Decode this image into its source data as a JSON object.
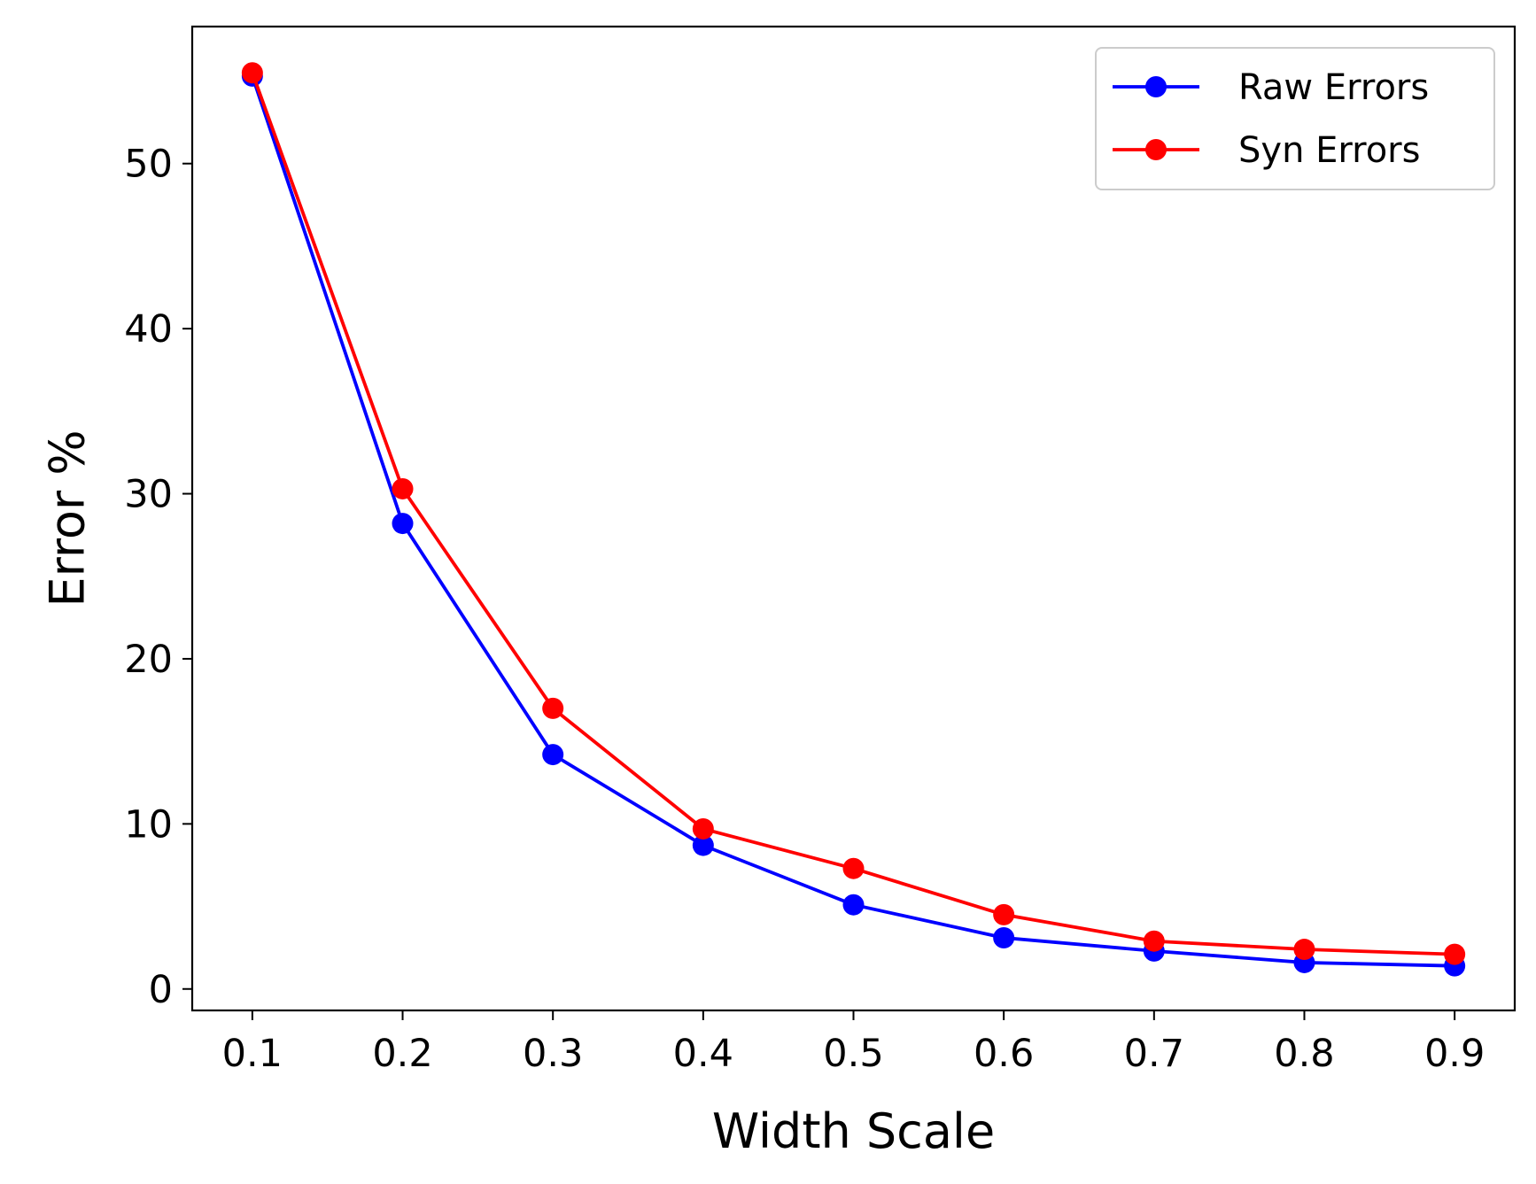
{
  "chart_data": {
    "type": "line",
    "title": "",
    "xlabel": "Width Scale",
    "ylabel": "Error %",
    "x": [
      0.1,
      0.2,
      0.3,
      0.4,
      0.5,
      0.6,
      0.7,
      0.8,
      0.9
    ],
    "x_tick_labels": [
      "0.1",
      "0.2",
      "0.3",
      "0.4",
      "0.5",
      "0.6",
      "0.7",
      "0.8",
      "0.9"
    ],
    "y_ticks": [
      0,
      10,
      20,
      30,
      40,
      50
    ],
    "y_tick_labels": [
      "0",
      "10",
      "20",
      "30",
      "40",
      "50"
    ],
    "xlim": [
      0.06,
      0.94
    ],
    "ylim": [
      -1.3,
      58.3
    ],
    "grid": false,
    "legend_position": "top-right",
    "series": [
      {
        "name": "Raw Errors",
        "color": "#0000ff",
        "marker": "circle",
        "values": [
          55.3,
          28.2,
          14.2,
          8.7,
          5.1,
          3.1,
          2.3,
          1.6,
          1.4
        ]
      },
      {
        "name": "Syn Errors",
        "color": "#ff0000",
        "marker": "circle",
        "values": [
          55.5,
          30.3,
          17.0,
          9.7,
          7.3,
          4.5,
          2.9,
          2.4,
          2.1
        ]
      }
    ]
  }
}
